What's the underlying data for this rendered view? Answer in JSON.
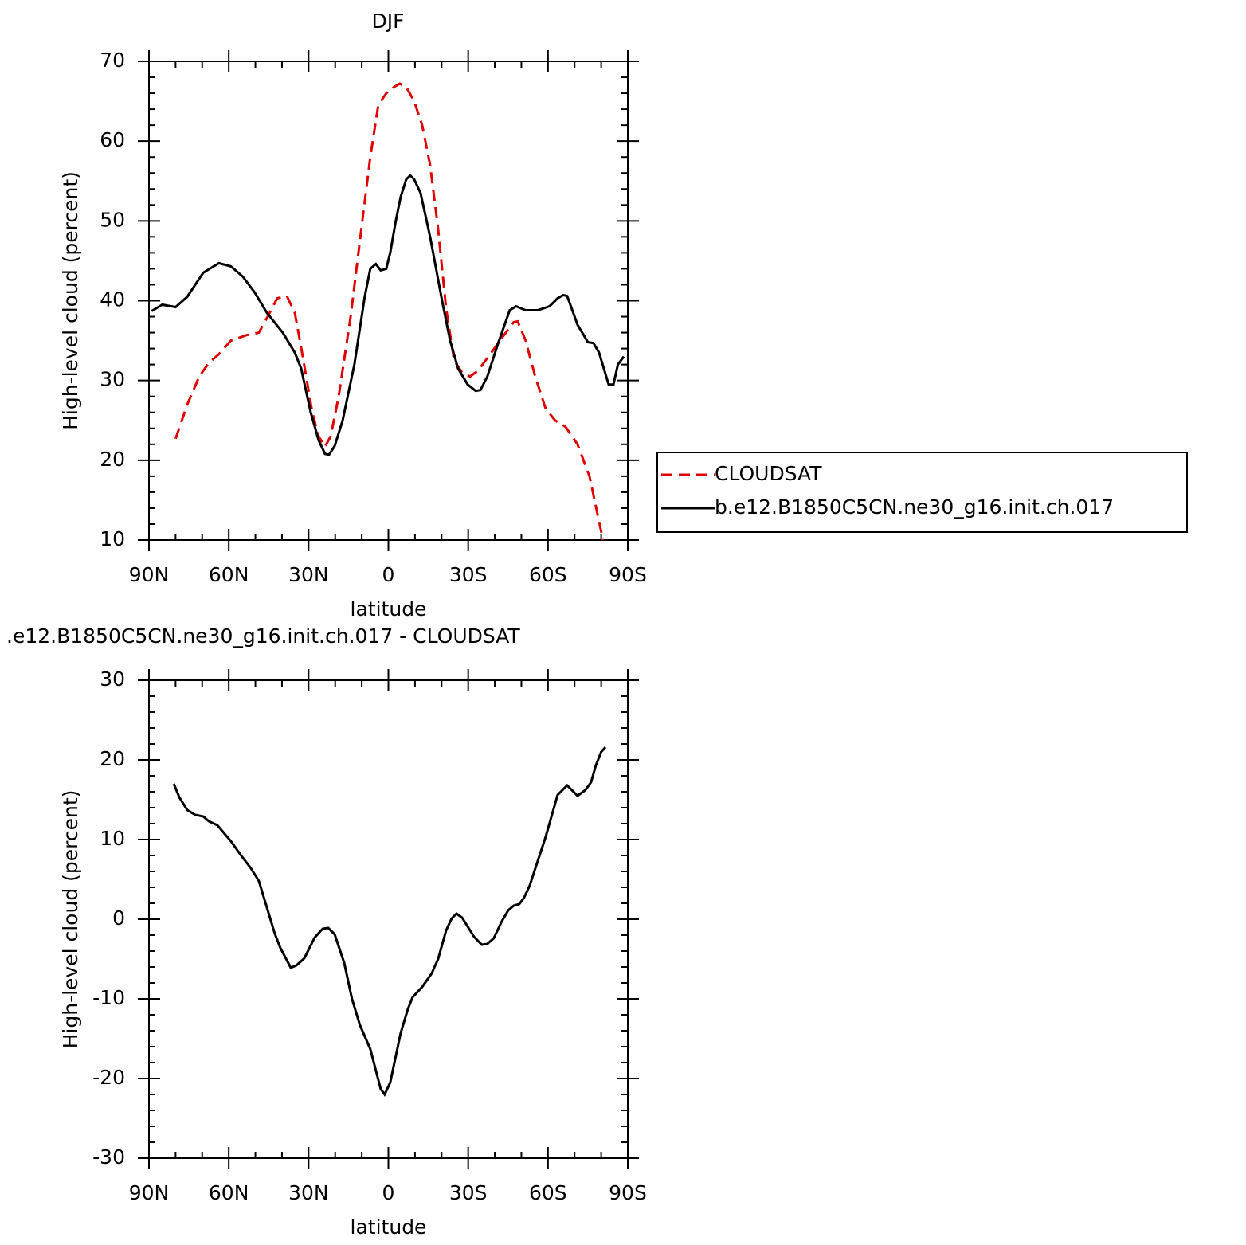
{
  "chart_data": [
    {
      "type": "line",
      "title": "DJF",
      "xlabel": "latitude",
      "ylabel": "High-level cloud (percent)",
      "xlim": [
        90,
        -90
      ],
      "xticks": [
        {
          "value": 90,
          "label": "90N"
        },
        {
          "value": 60,
          "label": "60N"
        },
        {
          "value": 30,
          "label": "30N"
        },
        0,
        {
          "value": -30,
          "label": "30S"
        },
        {
          "value": -60,
          "label": "60S"
        },
        {
          "value": -90,
          "label": "90S"
        }
      ],
      "ylim": [
        10,
        70
      ],
      "yticks": [
        10,
        20,
        30,
        40,
        50,
        60,
        70
      ],
      "legend": "right",
      "series": [
        {
          "name": "CLOUDSAT",
          "color": "#e00000",
          "style": "dashed",
          "x": [
            80,
            75.6,
            71.1,
            67.5,
            63.7,
            59.2,
            53.2,
            48.7,
            45.7,
            41.8,
            38.2,
            35.2,
            32.2,
            28.6,
            26.2,
            23.8,
            21.7,
            18.7,
            14.2,
            9.8,
            6.8,
            3.8,
            0.8,
            -2.2,
            -4.3,
            -6.7,
            -9.7,
            -12.7,
            -15.7,
            -18.7,
            -21.7,
            -24.7,
            -27.7,
            -30.7,
            -33.6,
            -38.1,
            -42.6,
            -47.1,
            -48.6,
            -51.6,
            -55.2,
            -59.1,
            -62.7,
            -66.6,
            -71.1,
            -75.6,
            -80.7
          ],
          "values": [
            22.7,
            27,
            30.5,
            32.2,
            33.3,
            35,
            35.7,
            36,
            37.8,
            40.3,
            40.6,
            38.5,
            33,
            26,
            23,
            21.7,
            23,
            28,
            38,
            50,
            58,
            64.5,
            66,
            66.8,
            67.2,
            66.8,
            65,
            62,
            57,
            49,
            39,
            32.5,
            31,
            30.5,
            31.2,
            33.2,
            35.3,
            37.3,
            37.4,
            35,
            30.5,
            26.5,
            25,
            24.2,
            22,
            18,
            10
          ]
        },
        {
          "name": "b.e12.B1850C5CN.ne30_g16.init.ch.017",
          "color": "#000000",
          "style": "solid",
          "x": [
            89,
            85,
            80,
            75.6,
            69.6,
            63.7,
            59.2,
            54.7,
            50.2,
            45.7,
            39.7,
            35.2,
            32.8,
            29.2,
            26.2,
            23.8,
            22.3,
            20.2,
            17.2,
            12.8,
            8.9,
            6.8,
            4.7,
            2.9,
            0.8,
            -0.7,
            -2.8,
            -4.6,
            -6.7,
            -8.2,
            -9.7,
            -12.1,
            -15.7,
            -20.2,
            -23.2,
            -26.2,
            -29.8,
            -32.8,
            -34.6,
            -37.2,
            -41.1,
            -45.6,
            -48,
            -51.6,
            -56.1,
            -60.6,
            -63.6,
            -65.7,
            -67.2,
            -71.1,
            -75,
            -77.1,
            -79.2,
            -81,
            -82.8,
            -84.6,
            -86.3,
            -88.5
          ],
          "values": [
            38.7,
            39.5,
            39.2,
            40.5,
            43.5,
            44.7,
            44.3,
            43,
            41,
            38.5,
            36,
            33.5,
            31.5,
            26,
            22.5,
            20.8,
            20.7,
            21.8,
            25,
            32,
            40.5,
            44,
            44.6,
            43.8,
            44,
            46,
            50,
            53,
            55.2,
            55.7,
            55.2,
            53.5,
            48,
            40,
            35,
            31.5,
            29.5,
            28.7,
            28.8,
            30.5,
            34.5,
            38.8,
            39.3,
            38.8,
            38.8,
            39.3,
            40.3,
            40.7,
            40.6,
            37,
            34.8,
            34.7,
            33.5,
            31.5,
            29.5,
            29.5,
            32,
            33
          ]
        }
      ]
    },
    {
      "type": "line",
      "title": ".e12.B1850C5CN.ne30_g16.init.ch.017 - CLOUDSAT",
      "xlabel": "latitude",
      "ylabel": "High-level cloud (percent)",
      "xlim": [
        90,
        -90
      ],
      "xticks": [
        {
          "value": 90,
          "label": "90N"
        },
        {
          "value": 60,
          "label": "60N"
        },
        {
          "value": 30,
          "label": "30N"
        },
        0,
        {
          "value": -30,
          "label": "30S"
        },
        {
          "value": -60,
          "label": "60S"
        },
        {
          "value": -90,
          "label": "90S"
        }
      ],
      "ylim": [
        -30,
        30
      ],
      "yticks": [
        -30,
        -20,
        -10,
        0,
        10,
        20,
        30
      ],
      "series": [
        {
          "color": "#000000",
          "style": "solid",
          "x": [
            80.7,
            78.6,
            75.6,
            72.6,
            69.6,
            67.5,
            64.3,
            59.2,
            55.6,
            51.7,
            48.7,
            45.7,
            42.7,
            40.6,
            36.7,
            34.6,
            31.6,
            27.7,
            24.7,
            22.6,
            20.2,
            16.6,
            13.7,
            10.7,
            6.8,
            2.9,
            1.4,
            -0.7,
            -4.6,
            -7.3,
            -9.1,
            -12.7,
            -16.3,
            -18.7,
            -21.7,
            -23.8,
            -25.6,
            -27.7,
            -32.2,
            -35.1,
            -37.2,
            -39.6,
            -42.6,
            -45,
            -47.1,
            -49.2,
            -51,
            -53.1,
            -59.1,
            -63.6,
            -67.2,
            -71.1,
            -74,
            -76.2,
            -78,
            -80,
            -81.6
          ],
          "values": [
            17,
            15.3,
            13.7,
            13.1,
            12.9,
            12.3,
            11.8,
            9.8,
            8.1,
            6.4,
            4.8,
            1.5,
            -1.8,
            -3.6,
            -6.1,
            -5.8,
            -4.9,
            -2.3,
            -1.2,
            -1.1,
            -1.9,
            -5.5,
            -10,
            -13.3,
            -16.3,
            -21.3,
            -22,
            -20.5,
            -14.3,
            -11.3,
            -9.8,
            -8.5,
            -6.8,
            -5,
            -1.4,
            0.1,
            0.7,
            0.2,
            -2.2,
            -3.2,
            -3.1,
            -2.4,
            -0.3,
            1.1,
            1.7,
            1.9,
            2.7,
            4.2,
            10.3,
            15.6,
            16.8,
            15.5,
            16.2,
            17.2,
            19.3,
            21,
            21.6
          ]
        }
      ]
    }
  ]
}
